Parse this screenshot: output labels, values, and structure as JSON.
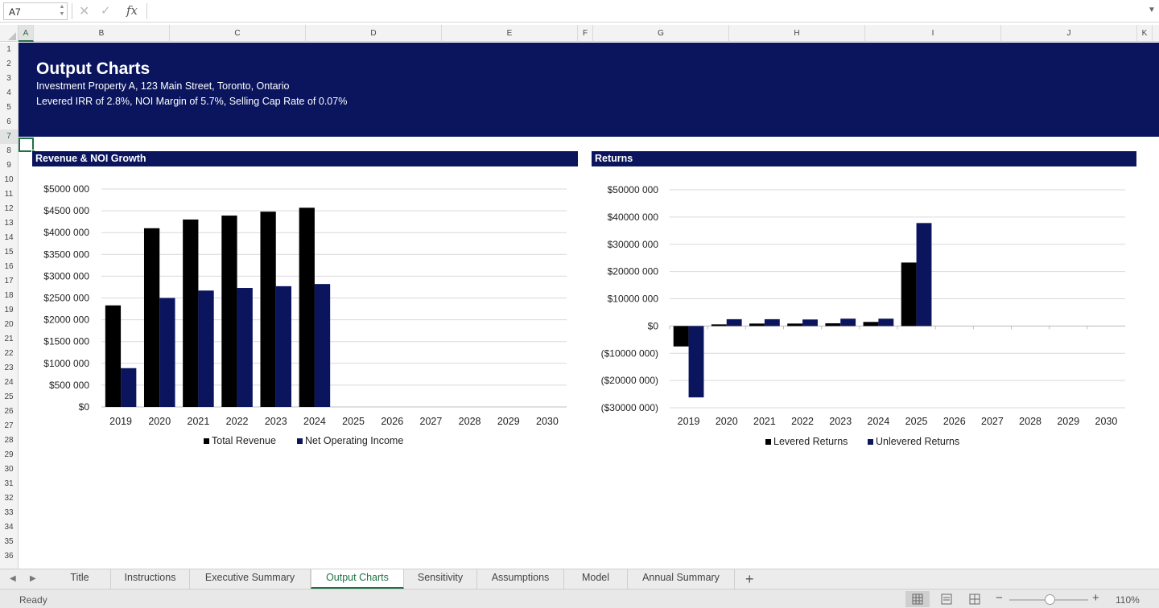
{
  "formula_bar": {
    "name_box": "A7",
    "formula": "",
    "fx_label": "fx"
  },
  "columns": [
    "A",
    "B",
    "C",
    "D",
    "E",
    "F",
    "G",
    "H",
    "I",
    "J",
    "K"
  ],
  "active_column": "A",
  "rows": [
    1,
    2,
    3,
    4,
    5,
    6,
    7,
    8,
    9,
    10,
    11,
    12,
    13,
    14,
    15,
    16,
    17,
    18,
    19,
    20,
    21,
    22,
    23,
    24,
    25,
    26,
    27,
    28,
    29,
    30,
    31,
    32,
    33,
    34,
    35,
    36
  ],
  "active_row": 7,
  "banner": {
    "title": "Output Charts",
    "subtitle1": "Investment Property A, 123 Main Street, Toronto, Ontario",
    "subtitle2": "Levered IRR of 2.8%, NOI Margin of 5.7%, Selling Cap Rate of 0.07%",
    "color": "#0a155e"
  },
  "chart_data": [
    {
      "type": "bar",
      "title": "Revenue & NOI Growth",
      "categories": [
        "2019",
        "2020",
        "2021",
        "2022",
        "2023",
        "2024",
        "2025",
        "2026",
        "2027",
        "2028",
        "2029",
        "2030"
      ],
      "series": [
        {
          "name": "Total Revenue",
          "color": "#000000",
          "values": [
            2330000,
            4100000,
            4300000,
            4390000,
            4480000,
            4570000,
            0,
            0,
            0,
            0,
            0,
            0
          ]
        },
        {
          "name": "Net Operating Income",
          "color": "#0a155e",
          "values": [
            890000,
            2500000,
            2670000,
            2730000,
            2770000,
            2820000,
            0,
            0,
            0,
            0,
            0,
            0
          ]
        }
      ],
      "ylim": [
        0,
        5000000
      ],
      "yticks": [
        0,
        500000,
        1000000,
        1500000,
        2000000,
        2500000,
        3000000,
        3500000,
        4000000,
        4500000,
        5000000
      ],
      "ytick_labels": [
        "$0",
        "$500 000",
        "$1000 000",
        "$1500 000",
        "$2000 000",
        "$2500 000",
        "$3000 000",
        "$3500 000",
        "$4000 000",
        "$4500 000",
        "$5000 000"
      ],
      "grid": true,
      "legend": "bottom"
    },
    {
      "type": "bar",
      "title": "Returns",
      "categories": [
        "2019",
        "2020",
        "2021",
        "2022",
        "2023",
        "2024",
        "2025",
        "2026",
        "2027",
        "2028",
        "2029",
        "2030"
      ],
      "series": [
        {
          "name": "Levered Returns",
          "color": "#000000",
          "values": [
            -7500000,
            600000,
            900000,
            900000,
            1000000,
            1500000,
            23300000,
            0,
            0,
            0,
            0,
            0
          ]
        },
        {
          "name": "Unlevered Returns",
          "color": "#0a155e",
          "values": [
            -26200000,
            2500000,
            2500000,
            2400000,
            2700000,
            2700000,
            37800000,
            0,
            0,
            0,
            0,
            0
          ]
        }
      ],
      "ylim": [
        -30000000,
        50000000
      ],
      "yticks": [
        -30000000,
        -20000000,
        -10000000,
        0,
        10000000,
        20000000,
        30000000,
        40000000,
        50000000
      ],
      "ytick_labels": [
        "($30000 000)",
        "($20000 000)",
        "($10000 000)",
        "$0",
        "$10000 000",
        "$20000 000",
        "$30000 000",
        "$40000 000",
        "$50000 000"
      ],
      "grid": true,
      "legend": "bottom"
    }
  ],
  "sheet_tabs": [
    "Title",
    "Instructions",
    "Executive Summary",
    "Output Charts",
    "Sensitivity",
    "Assumptions",
    "Model",
    "Annual Summary"
  ],
  "active_tab": "Output Charts",
  "status": {
    "text": "Ready",
    "zoom": "110%"
  }
}
